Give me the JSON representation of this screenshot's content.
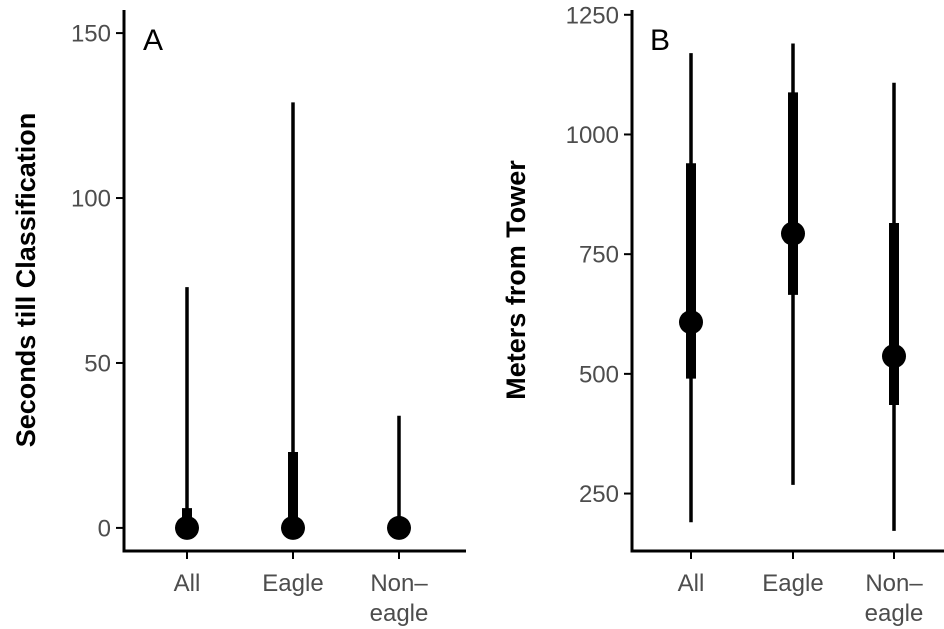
{
  "chart_data": [
    {
      "type": "pointrange",
      "panel_label": "A",
      "title": "",
      "xlabel": "",
      "ylabel": "Seconds till Classification",
      "categories": [
        "All",
        "Eagle",
        "Non–eagle"
      ],
      "category_lines": [
        [
          "All"
        ],
        [
          "Eagle"
        ],
        [
          "Non–",
          "eagle"
        ]
      ],
      "yticks": [
        0,
        50,
        100,
        150
      ],
      "ylim": [
        -7,
        157
      ],
      "points": [
        {
          "category": "All",
          "median": 0,
          "inner_low": 0,
          "inner_high": 6,
          "outer_low": 0,
          "outer_high": 73
        },
        {
          "category": "Eagle",
          "median": 0,
          "inner_low": 0,
          "inner_high": 23,
          "outer_low": 0,
          "outer_high": 129
        },
        {
          "category": "Non–eagle",
          "median": 0,
          "inner_low": 0,
          "inner_high": 0,
          "outer_low": 0,
          "outer_high": 34
        }
      ],
      "grid": false,
      "colors": {
        "mark": "#000000",
        "tick_text": "#4d4d4d",
        "axis": "#000000"
      }
    },
    {
      "type": "pointrange",
      "panel_label": "B",
      "title": "",
      "xlabel": "",
      "ylabel": "Meters from Tower",
      "categories": [
        "All",
        "Eagle",
        "Non–eagle"
      ],
      "category_lines": [
        [
          "All"
        ],
        [
          "Eagle"
        ],
        [
          "Non–",
          "eagle"
        ]
      ],
      "yticks": [
        250,
        500,
        750,
        1000,
        1250
      ],
      "ylim": [
        130,
        1260
      ],
      "points": [
        {
          "category": "All",
          "median": 608,
          "inner_low": 490,
          "inner_high": 940,
          "outer_low": 190,
          "outer_high": 1170
        },
        {
          "category": "Eagle",
          "median": 793,
          "inner_low": 665,
          "inner_high": 1088,
          "outer_low": 268,
          "outer_high": 1190
        },
        {
          "category": "Non–eagle",
          "median": 537,
          "inner_low": 435,
          "inner_high": 815,
          "outer_low": 172,
          "outer_high": 1108
        }
      ],
      "grid": false,
      "colors": {
        "mark": "#000000",
        "tick_text": "#4d4d4d",
        "axis": "#000000"
      }
    }
  ]
}
